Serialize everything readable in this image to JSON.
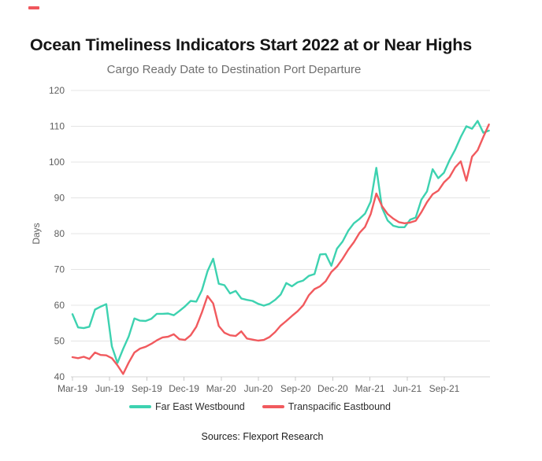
{
  "page": {
    "background": "#ffffff"
  },
  "brand": {
    "mark_color": "#f0565c"
  },
  "header": {
    "title": "Ocean Timeliness Indicators Start 2022 at or Near Highs"
  },
  "chart_data": {
    "type": "line",
    "title": "Cargo Ready Date to Destination Port Departure",
    "xlabel": "",
    "ylabel": "Days",
    "ylim": [
      40,
      120
    ],
    "y_ticks": [
      40,
      50,
      60,
      70,
      80,
      90,
      100,
      110,
      120
    ],
    "x_tick_labels": [
      "Mar-19",
      "Jun-19",
      "Sep-19",
      "Dec-19",
      "Mar-20",
      "Jun-20",
      "Sep-20",
      "Dec-20",
      "Mar-21",
      "Jun-21",
      "Sep-21"
    ],
    "grid": true,
    "legend_position": "bottom",
    "axis_text_color": "#5e5e5e",
    "grid_color": "#e4e4e4",
    "series": [
      {
        "name": "Far East Westbound",
        "color": "#3dd2b0",
        "values": [
          57.5,
          53.8,
          53.6,
          54.0,
          58.8,
          59.6,
          60.3,
          48.5,
          43.9,
          47.8,
          51.3,
          56.3,
          55.7,
          55.6,
          56.2,
          57.6,
          57.6,
          57.7,
          57.2,
          58.4,
          59.7,
          61.2,
          61.0,
          64.2,
          69.5,
          73.0,
          66.0,
          65.6,
          63.3,
          64.0,
          61.9,
          61.5,
          61.2,
          60.4,
          59.9,
          60.4,
          61.5,
          63.0,
          66.2,
          65.3,
          66.4,
          66.9,
          68.2,
          68.7,
          74.2,
          74.3,
          71.0,
          75.8,
          77.8,
          80.8,
          82.9,
          84.1,
          85.6,
          89.0,
          98.4,
          87.2,
          83.7,
          82.2,
          81.8,
          81.8,
          83.9,
          84.5,
          89.5,
          91.8,
          98.0,
          95.5,
          97.0,
          100.5,
          103.4,
          107.0,
          110.0,
          109.3,
          111.5,
          108.2,
          108.8
        ]
      },
      {
        "name": "Transpacific Eastbound",
        "color": "#f15a5e",
        "values": [
          45.5,
          45.2,
          45.6,
          45.0,
          46.8,
          46.1,
          46.0,
          45.2,
          43.2,
          40.8,
          44.0,
          46.8,
          47.9,
          48.4,
          49.2,
          50.2,
          51.0,
          51.2,
          51.9,
          50.5,
          50.3,
          51.6,
          54.0,
          58.0,
          62.6,
          60.5,
          54.2,
          52.3,
          51.6,
          51.4,
          52.7,
          50.7,
          50.4,
          50.1,
          50.3,
          51.1,
          52.5,
          54.3,
          55.6,
          57.0,
          58.3,
          60.0,
          62.8,
          64.5,
          65.3,
          66.7,
          69.3,
          70.8,
          73.0,
          75.5,
          77.6,
          80.2,
          81.9,
          85.5,
          91.2,
          87.7,
          85.5,
          84.2,
          83.2,
          82.9,
          83.1,
          83.6,
          86.0,
          88.8,
          91.0,
          92.0,
          94.3,
          95.8,
          98.5,
          100.2,
          94.8,
          101.5,
          103.3,
          107.0,
          110.5
        ]
      }
    ]
  },
  "footer": {
    "sources": "Sources: Flexport Research"
  }
}
